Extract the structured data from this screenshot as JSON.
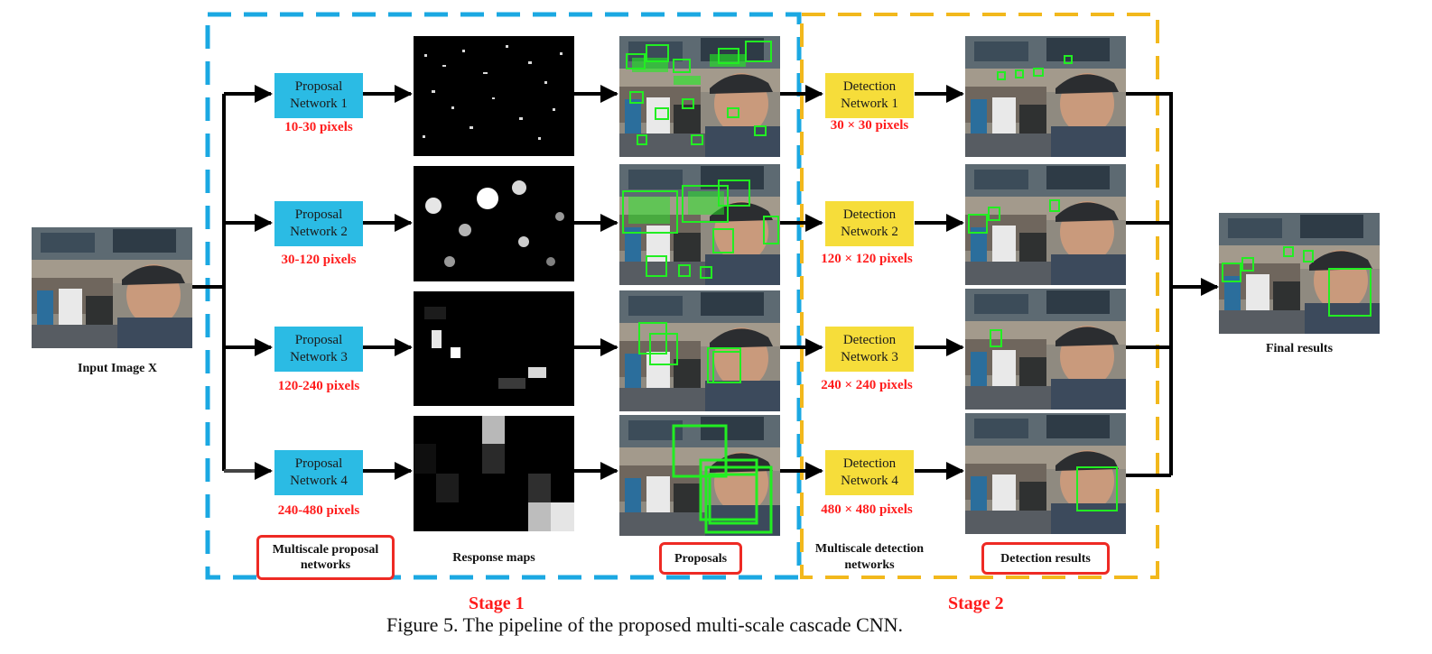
{
  "input_label": "Input Image X",
  "final_label": "Final results",
  "proposal_networks": [
    {
      "name_line1": "Proposal",
      "name_line2": "Network 1",
      "scale": "10-30 pixels"
    },
    {
      "name_line1": "Proposal",
      "name_line2": "Network 2",
      "scale": "30-120 pixels"
    },
    {
      "name_line1": "Proposal",
      "name_line2": "Network 3",
      "scale": "120-240 pixels"
    },
    {
      "name_line1": "Proposal",
      "name_line2": "Network 4",
      "scale": "240-480 pixels"
    }
  ],
  "detection_networks": [
    {
      "name_line1": "Detection",
      "name_line2": "Network 1",
      "scale": "30 × 30 pixels"
    },
    {
      "name_line1": "Detection",
      "name_line2": "Network 2",
      "scale": "120 × 120 pixels"
    },
    {
      "name_line1": "Detection",
      "name_line2": "Network 3",
      "scale": "240 × 240 pixels"
    },
    {
      "name_line1": "Detection",
      "name_line2": "Network 4",
      "scale": "480 × 480 pixels"
    }
  ],
  "column_labels": {
    "multiscale_proposal": "Multiscale proposal networks",
    "response_maps": "Response maps",
    "proposals": "Proposals",
    "multiscale_detection": "Multiscale detection networks",
    "detection_results": "Detection results"
  },
  "stages": {
    "stage1": "Stage 1",
    "stage2": "Stage 2"
  },
  "caption": "Figure 5. The pipeline of the proposed multi-scale cascade CNN.",
  "colors": {
    "proposal_net": "#2bbbe4",
    "detection_net": "#f6dd3a",
    "stage1_frame": "#1ba8e2",
    "stage2_frame": "#f2b81c",
    "scale_text": "#ff1c1c",
    "highlight_box": "#ee2a24",
    "proposal_boxes": "#22ee22"
  }
}
